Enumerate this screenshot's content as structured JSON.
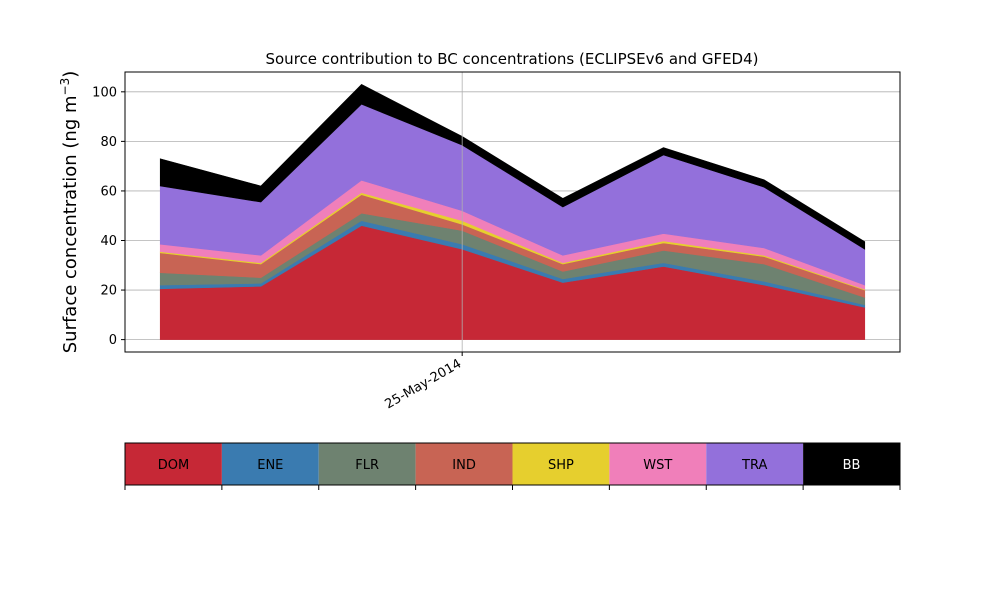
{
  "chart_data": {
    "type": "area",
    "stacked": true,
    "title": "Source contribution to BC concentrations (ECLIPSEv6 and GFED4)",
    "ylabel": "Surface concentration (ng m",
    "ylabel_unit_exponent": "−3",
    "ylabel_suffix": ")",
    "ylim": [
      -5,
      108
    ],
    "yticks": [
      0,
      20,
      40,
      60,
      80,
      100
    ],
    "xtick_label": "25-May-2014",
    "xtick_at_index": 3,
    "xlim": [
      -0.35,
      7.35
    ],
    "grid": true,
    "legend": "colorbar-below",
    "series": [
      {
        "name": "DOM",
        "color": "#c62836",
        "values": [
          20.5,
          21.5,
          46.0,
          36.5,
          23.0,
          29.5,
          22.0,
          13.0
        ]
      },
      {
        "name": "ENE",
        "color": "#3a7bb0",
        "values": [
          1.5,
          1.2,
          2.0,
          2.0,
          1.5,
          1.5,
          1.5,
          1.0
        ]
      },
      {
        "name": "FLR",
        "color": "#6e8270",
        "values": [
          5.0,
          2.3,
          3.0,
          5.5,
          3.0,
          5.0,
          7.0,
          3.0
        ]
      },
      {
        "name": "IND",
        "color": "#c86454",
        "values": [
          8.0,
          5.5,
          7.5,
          2.5,
          3.0,
          3.0,
          3.0,
          3.0
        ]
      },
      {
        "name": "SHP",
        "color": "#e6cf2e",
        "values": [
          0.5,
          0.5,
          0.8,
          1.5,
          0.5,
          0.8,
          0.5,
          0.3
        ]
      },
      {
        "name": "WST",
        "color": "#f07fba",
        "values": [
          3.0,
          3.0,
          5.0,
          4.0,
          3.0,
          3.0,
          3.0,
          1.7
        ]
      },
      {
        "name": "TRA",
        "color": "#9370db",
        "values": [
          23.5,
          21.5,
          30.7,
          26.5,
          19.5,
          31.7,
          24.5,
          14.5
        ]
      },
      {
        "name": "BB",
        "color": "#000000",
        "values": [
          11.0,
          6.5,
          8.0,
          3.5,
          3.5,
          3.0,
          3.0,
          3.0
        ]
      }
    ]
  }
}
